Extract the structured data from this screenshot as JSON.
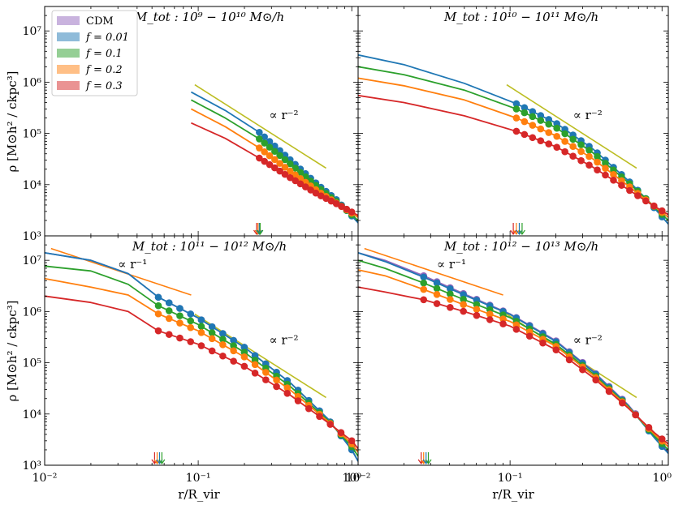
{
  "figure": {
    "ylabel": "ρ [M⊙h² / ckpc³]",
    "xlabel": "r/R_vir",
    "colors": {
      "CDM": "#9467bd",
      "f=0.01": "#1f77b4",
      "f=0.1": "#2ca02c",
      "f=0.2": "#ff7f0e",
      "f=0.3": "#d62728",
      "slope_r2": "#bcbd22",
      "slope_r1": "#ff7f0e"
    },
    "legend": {
      "placement": "upper-left of top-left panel",
      "entries": [
        "CDM",
        "f = 0.01",
        "f = 0.1",
        "f = 0.2",
        "f = 0.3"
      ]
    },
    "xticks": [
      "10⁻²",
      "10⁻¹",
      "10⁰"
    ],
    "yticks": [
      "10³",
      "10⁴",
      "10⁵",
      "10⁶",
      "10⁷"
    ]
  },
  "chart_data": [
    {
      "type": "line",
      "title": "M_tot : 10⁹ − 10¹⁰ M⊙/h",
      "xscale": "log",
      "yscale": "log",
      "xlim": [
        0.01,
        1.1
      ],
      "ylim": [
        1000,
        30000000
      ],
      "arrows_x": [
        0.24,
        0.245,
        0.25,
        0.253
      ],
      "annotations": [
        {
          "text": "∝ r⁻²",
          "x": 0.29,
          "y": 190000
        }
      ],
      "reference_lines": [
        {
          "slope": -2,
          "x": [
            0.095,
            0.68
          ],
          "y": [
            890000,
            21000
          ],
          "color": "slope_r2"
        }
      ],
      "series": [
        {
          "name": "f = 0.01",
          "color": "f=0.01",
          "x": [
            0.09,
            0.15,
            0.25,
            0.4,
            0.6,
            0.8,
            1.1
          ],
          "y": [
            640000,
            280000,
            105000,
            30000,
            10000,
            5000,
            1800
          ],
          "markers_from": 0.25
        },
        {
          "name": "f = 0.1",
          "color": "f=0.1",
          "x": [
            0.09,
            0.15,
            0.25,
            0.4,
            0.6,
            0.8,
            1.1
          ],
          "y": [
            450000,
            200000,
            78000,
            25000,
            9000,
            4600,
            2000
          ],
          "markers_from": 0.25
        },
        {
          "name": "f = 0.2",
          "color": "f=0.2",
          "x": [
            0.09,
            0.15,
            0.25,
            0.4,
            0.6,
            0.8,
            1.1
          ],
          "y": [
            300000,
            135000,
            52000,
            18000,
            7500,
            4300,
            2300
          ],
          "markers_from": 0.25
        },
        {
          "name": "f = 0.3",
          "color": "f=0.3",
          "x": [
            0.09,
            0.15,
            0.25,
            0.4,
            0.6,
            0.8,
            1.1
          ],
          "y": [
            160000,
            80000,
            33000,
            13500,
            6500,
            4200,
            2500
          ],
          "markers_from": 0.25
        }
      ]
    },
    {
      "type": "line",
      "title": "M_tot : 10¹⁰ − 10¹¹ M⊙/h",
      "xscale": "log",
      "yscale": "log",
      "xlim": [
        0.01,
        1.1
      ],
      "ylim": [
        1000,
        30000000
      ],
      "arrows_x": [
        0.105,
        0.11,
        0.115,
        0.12
      ],
      "annotations": [
        {
          "text": "∝ r⁻²",
          "x": 0.26,
          "y": 190000
        }
      ],
      "reference_lines": [
        {
          "slope": -2,
          "x": [
            0.095,
            0.68
          ],
          "y": [
            890000,
            21000
          ],
          "color": "slope_r2"
        }
      ],
      "series": [
        {
          "name": "f = 0.01",
          "color": "f=0.01",
          "x": [
            0.01,
            0.02,
            0.05,
            0.11,
            0.2,
            0.35,
            0.6,
            0.8,
            1.1
          ],
          "y": [
            3400000,
            2200000,
            950000,
            380000,
            160000,
            50000,
            12000,
            5000,
            1700
          ],
          "markers_from": 0.11
        },
        {
          "name": "f = 0.1",
          "color": "f=0.1",
          "x": [
            0.01,
            0.02,
            0.05,
            0.11,
            0.2,
            0.35,
            0.6,
            0.8,
            1.1
          ],
          "y": [
            2000000,
            1400000,
            700000,
            300000,
            130000,
            42000,
            11000,
            5000,
            2000
          ],
          "markers_from": 0.11
        },
        {
          "name": "f = 0.2",
          "color": "f=0.2",
          "x": [
            0.01,
            0.02,
            0.05,
            0.11,
            0.2,
            0.35,
            0.6,
            0.8,
            1.1
          ],
          "y": [
            1200000,
            850000,
            450000,
            200000,
            90000,
            32000,
            9500,
            4800,
            2300
          ],
          "markers_from": 0.11
        },
        {
          "name": "f = 0.3",
          "color": "f=0.3",
          "x": [
            0.01,
            0.02,
            0.05,
            0.11,
            0.2,
            0.35,
            0.6,
            0.8,
            1.1
          ],
          "y": [
            550000,
            400000,
            220000,
            110000,
            55000,
            22000,
            8000,
            4600,
            2600
          ],
          "markers_from": 0.11
        }
      ]
    },
    {
      "type": "line",
      "title": "M_tot : 10¹¹ − 10¹² M⊙/h",
      "xscale": "log",
      "yscale": "log",
      "xlim": [
        0.01,
        1.1
      ],
      "ylim": [
        1000,
        30000000
      ],
      "arrows_x": [
        0.052,
        0.054,
        0.056,
        0.058
      ],
      "annotations": [
        {
          "text": "∝ r⁻¹",
          "x": 0.03,
          "y": 7000000
        },
        {
          "text": "∝ r⁻²",
          "x": 0.29,
          "y": 230000
        }
      ],
      "reference_lines": [
        {
          "slope": -1,
          "x": [
            0.011,
            0.09
          ],
          "y": [
            17000000,
            2100000
          ],
          "color": "slope_r1"
        },
        {
          "slope": -2,
          "x": [
            0.095,
            0.68
          ],
          "y": [
            890000,
            21000
          ],
          "color": "slope_r2"
        }
      ],
      "series": [
        {
          "name": "CDM",
          "color": "CDM",
          "x": [
            0.01,
            0.02,
            0.035,
            0.055,
            0.1,
            0.2,
            0.4,
            0.7,
            1.0,
            1.1
          ],
          "y": [
            14000000,
            10000000,
            5500000,
            1900000,
            750000,
            200000,
            40000,
            8000,
            2000,
            1200
          ],
          "markers_from": 0.055
        },
        {
          "name": "f = 0.01",
          "color": "f=0.01",
          "x": [
            0.01,
            0.02,
            0.035,
            0.055,
            0.1,
            0.2,
            0.4,
            0.7,
            1.0,
            1.1
          ],
          "y": [
            14000000,
            10000000,
            5500000,
            1900000,
            750000,
            200000,
            40000,
            8000,
            2000,
            1200
          ],
          "markers_from": 0.055
        },
        {
          "name": "f = 0.1",
          "color": "f=0.1",
          "x": [
            0.01,
            0.02,
            0.035,
            0.055,
            0.1,
            0.2,
            0.4,
            0.7,
            1.0,
            1.1
          ],
          "y": [
            7700000,
            6200000,
            3400000,
            1300000,
            560000,
            160000,
            34000,
            7500,
            2300,
            1500
          ],
          "markers_from": 0.055
        },
        {
          "name": "f = 0.2",
          "color": "f=0.2",
          "x": [
            0.01,
            0.02,
            0.035,
            0.055,
            0.1,
            0.2,
            0.4,
            0.7,
            1.0,
            1.1
          ],
          "y": [
            4400000,
            3000000,
            2100000,
            900000,
            420000,
            130000,
            29000,
            7200,
            2600,
            1800
          ],
          "markers_from": 0.055
        },
        {
          "name": "f = 0.3",
          "color": "f=0.3",
          "x": [
            0.01,
            0.02,
            0.035,
            0.055,
            0.1,
            0.2,
            0.4,
            0.7,
            1.0,
            1.1
          ],
          "y": [
            2000000,
            1500000,
            1000000,
            420000,
            230000,
            85000,
            23000,
            6800,
            3000,
            2100
          ],
          "markers_from": 0.055
        }
      ]
    },
    {
      "type": "line",
      "title": "M_tot : 10¹² − 10¹³ M⊙/h",
      "xscale": "log",
      "yscale": "log",
      "xlim": [
        0.01,
        1.1
      ],
      "ylim": [
        1000,
        30000000
      ],
      "arrows_x": [
        0.026,
        0.027,
        0.028,
        0.029
      ],
      "annotations": [
        {
          "text": "∝ r⁻¹",
          "x": 0.033,
          "y": 7000000
        },
        {
          "text": "∝ r⁻²",
          "x": 0.26,
          "y": 230000
        }
      ],
      "reference_lines": [
        {
          "slope": -1,
          "x": [
            0.011,
            0.09
          ],
          "y": [
            17000000,
            2100000
          ],
          "color": "slope_r1"
        },
        {
          "slope": -2,
          "x": [
            0.095,
            0.68
          ],
          "y": [
            890000,
            21000
          ],
          "color": "slope_r2"
        }
      ],
      "series": [
        {
          "name": "CDM",
          "color": "CDM",
          "x": [
            0.01,
            0.015,
            0.027,
            0.05,
            0.1,
            0.2,
            0.35,
            0.6,
            0.9,
            1.1
          ],
          "y": [
            14000000,
            10000000,
            5000000,
            2200000,
            900000,
            270000,
            70000,
            15000,
            3500,
            1800
          ],
          "markers_from": 0.027
        },
        {
          "name": "f = 0.01",
          "color": "f=0.01",
          "x": [
            0.01,
            0.015,
            0.027,
            0.05,
            0.1,
            0.2,
            0.35,
            0.6,
            0.9,
            1.1
          ],
          "y": [
            14000000,
            9500000,
            4700000,
            2100000,
            880000,
            260000,
            68000,
            14500,
            3300,
            1700
          ],
          "markers_from": 0.027
        },
        {
          "name": "f = 0.1",
          "color": "f=0.1",
          "x": [
            0.01,
            0.015,
            0.027,
            0.05,
            0.1,
            0.2,
            0.35,
            0.6,
            0.9,
            1.1
          ],
          "y": [
            10000000,
            7000000,
            3600000,
            1700000,
            760000,
            230000,
            62000,
            14000,
            3600,
            2000
          ],
          "markers_from": 0.027
        },
        {
          "name": "f = 0.2",
          "color": "f=0.2",
          "x": [
            0.01,
            0.015,
            0.027,
            0.05,
            0.1,
            0.2,
            0.35,
            0.6,
            0.9,
            1.1
          ],
          "y": [
            6500000,
            5000000,
            2700000,
            1350000,
            640000,
            210000,
            58000,
            13500,
            3900,
            2300
          ],
          "markers_from": 0.027
        },
        {
          "name": "f = 0.3",
          "color": "f=0.3",
          "x": [
            0.01,
            0.015,
            0.027,
            0.05,
            0.1,
            0.2,
            0.35,
            0.6,
            0.9,
            1.1
          ],
          "y": [
            3000000,
            2400000,
            1700000,
            1000000,
            520000,
            180000,
            52000,
            13000,
            4200,
            2600
          ],
          "markers_from": 0.027
        }
      ]
    }
  ]
}
